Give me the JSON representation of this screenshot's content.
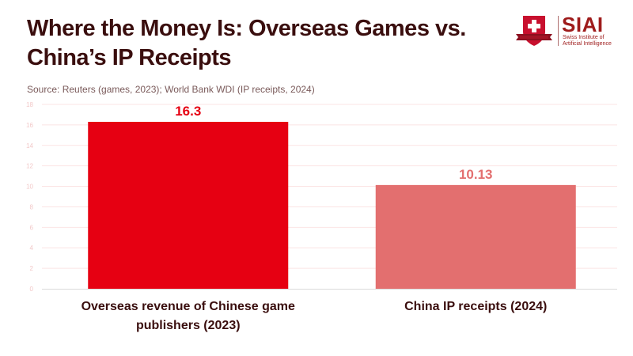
{
  "header": {
    "title": "Where the Money Is: Overseas Games vs. China’s IP Receipts",
    "source": "Source: Reuters (games, 2023); World Bank WDI (IP receipts, 2024)"
  },
  "logo": {
    "name": "SIAI",
    "subtitle_line1": "Swiss Institute of",
    "subtitle_line2": "Artificial Intelligence"
  },
  "chart_data": {
    "type": "bar",
    "title": "Where the Money Is: Overseas Games vs. China’s IP Receipts",
    "subtitle": "Source: Reuters (games, 2023); World Bank WDI (IP receipts, 2024)",
    "categories": [
      "Overseas revenue of Chinese game publishers (2023)",
      "China IP receipts (2024)"
    ],
    "values": [
      16.3,
      10.13
    ],
    "data_labels": [
      "16.3",
      "10.13"
    ],
    "colors": [
      "#e60012",
      "#e36f6f"
    ],
    "xlabel": "",
    "ylabel": "",
    "ylim": [
      0,
      18
    ],
    "yticks": [
      0,
      2,
      4,
      6,
      8,
      10,
      12,
      14,
      16,
      18
    ],
    "grid": true,
    "legend": "none"
  }
}
